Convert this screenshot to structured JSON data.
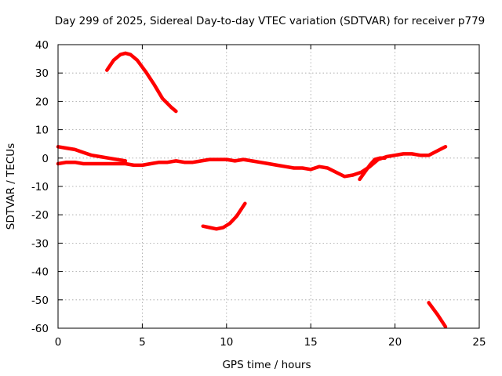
{
  "chart_data": {
    "type": "line",
    "title": "Day 299 of 2025, Sidereal Day-to-day VTEC variation (SDTVAR) for receiver p779",
    "xlabel": "GPS time / hours",
    "ylabel": "SDTVAR / TECUs",
    "xlim": [
      0,
      25
    ],
    "ylim": [
      -60,
      40
    ],
    "xticks": [
      0,
      5,
      10,
      15,
      20,
      25
    ],
    "yticks": [
      -60,
      -50,
      -40,
      -30,
      -20,
      -10,
      0,
      10,
      20,
      30,
      40
    ],
    "grid": true,
    "color": "#ff0000",
    "series": [
      {
        "name": "arc-1",
        "x": [
          0,
          0.5,
          1,
          1.5,
          2,
          2.5,
          3,
          3.5,
          4,
          4.5,
          5,
          5.5,
          6,
          6.5,
          7,
          7.5,
          8,
          8.5,
          9,
          9.5,
          10,
          10.5,
          11,
          11.5,
          12,
          12.5,
          13,
          13.5,
          14,
          14.5,
          15,
          15.5,
          16,
          16.5,
          17,
          17.5,
          18,
          18.5,
          19,
          19.5,
          20,
          20.5,
          21,
          21.5,
          22,
          22.5,
          23
        ],
        "y": [
          -2,
          -1.5,
          -1.5,
          -2,
          -2,
          -2,
          -2,
          -2,
          -2,
          -2.5,
          -2.5,
          -2,
          -1.5,
          -1.5,
          -1,
          -1.5,
          -1.5,
          -1,
          -0.5,
          -0.5,
          -0.5,
          -1,
          -0.5,
          -1,
          -1.5,
          -2,
          -2.5,
          -3,
          -3.5,
          -3.5,
          -4,
          -3,
          -3.5,
          -5,
          -6.5,
          -6,
          -5,
          -3,
          -0.5,
          0.5,
          1,
          1.5,
          1.5,
          1,
          1,
          2.5,
          4
        ]
      },
      {
        "name": "arc-2",
        "x": [
          0,
          0.5,
          1,
          1.5,
          2,
          2.5,
          3,
          3.5,
          4
        ],
        "y": [
          4,
          3.5,
          3,
          2,
          1,
          0.5,
          0,
          -0.5,
          -1
        ]
      },
      {
        "name": "arc-3",
        "x": [
          2.9,
          3.3,
          3.7,
          4.0,
          4.3,
          4.7,
          5.2,
          5.7,
          6.2,
          6.7,
          7.0
        ],
        "y": [
          31,
          34.5,
          36.5,
          37,
          36.5,
          34.5,
          30.5,
          26,
          21,
          18,
          16.5
        ]
      },
      {
        "name": "arc-4",
        "x": [
          8.6,
          9.0,
          9.4,
          9.8,
          10.2,
          10.6,
          11.1
        ],
        "y": [
          -24,
          -24.5,
          -25,
          -24.5,
          -23,
          -20.5,
          -16
        ]
      },
      {
        "name": "arc-5",
        "x": [
          17.9,
          18.2,
          18.5,
          18.8,
          19.1,
          19.4
        ],
        "y": [
          -7.5,
          -5,
          -2.5,
          -0.5,
          0,
          0
        ]
      },
      {
        "name": "arc-6",
        "x": [
          22.0,
          22.5,
          23.0
        ],
        "y": [
          -51,
          -55,
          -59.5
        ]
      }
    ]
  }
}
